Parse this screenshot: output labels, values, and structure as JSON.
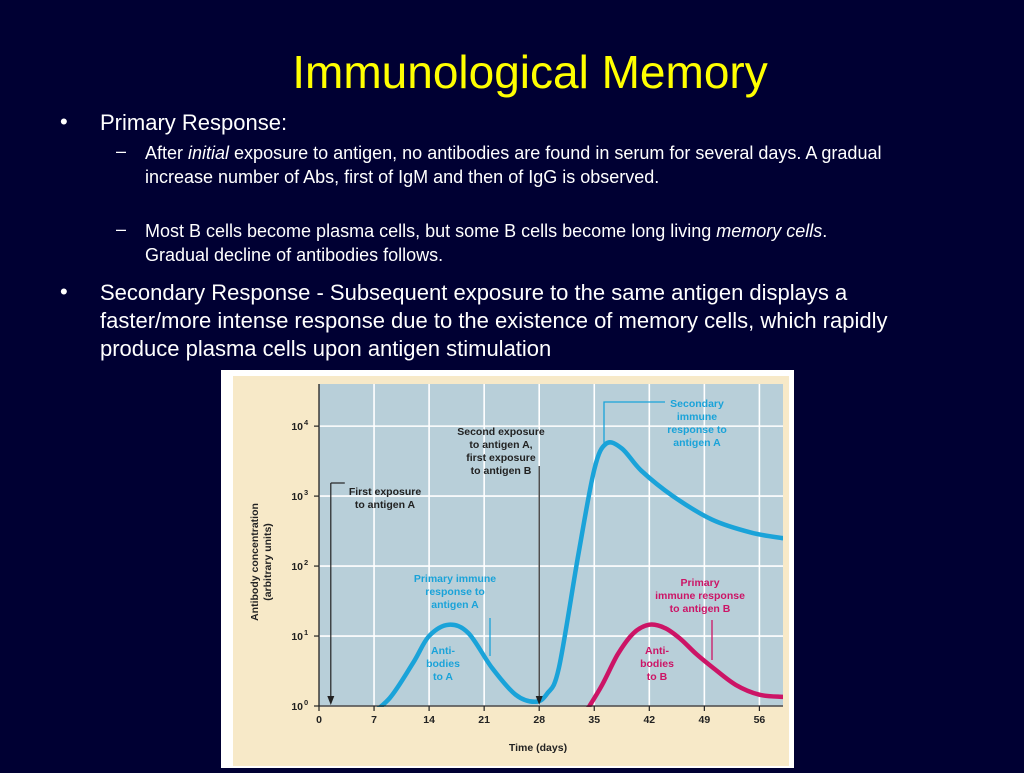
{
  "slide": {
    "title": "Immunological Memory",
    "bullet1": {
      "heading": "Primary Response:"
    },
    "sub1": {
      "pre": "After ",
      "em": "initial",
      "post": " exposure to antigen, no antibodies are found in serum for several days. A gradual increase number of Abs, first of IgM and then of IgG is observed."
    },
    "sub2": {
      "pre": "Most B cells become plasma cells, but some B cells become long living ",
      "em": "memory cells",
      "post": ". Gradual decline of antibodies follows."
    },
    "bullet2": {
      "heading": "Secondary Response - ",
      "text": "Subsequent exposure to the same antigen displays a faster/more intense response due to the existence of memory cells, which rapidly produce plasma cells upon antigen stimulation"
    },
    "marks": {
      "bullet": "•",
      "dash": "–"
    }
  },
  "chart_data": {
    "type": "line",
    "xlabel": "Time (days)",
    "ylabel_lines": [
      "Antibody concentration",
      "(arbitrary units)"
    ],
    "x_ticks": [
      0,
      7,
      14,
      21,
      28,
      35,
      42,
      49,
      56
    ],
    "xlim": [
      0,
      59
    ],
    "y_scale": "log",
    "y_ticks": [
      1,
      10,
      100,
      1000,
      10000
    ],
    "y_tick_labels": [
      {
        "base": "10",
        "exp": "0"
      },
      {
        "base": "10",
        "exp": "1"
      },
      {
        "base": "10",
        "exp": "2"
      },
      {
        "base": "10",
        "exp": "3"
      },
      {
        "base": "10",
        "exp": "4"
      }
    ],
    "ylim": [
      1,
      40000
    ],
    "grid": true,
    "series": [
      {
        "key": "a",
        "color": "#1aa3d9",
        "x": [
          6,
          9,
          12,
          14,
          16.5,
          19,
          22,
          25,
          27.5,
          29,
          30.5,
          33,
          35,
          36.5,
          38.5,
          41,
          45,
          50,
          55,
          59
        ],
        "y": [
          0.68,
          1.3,
          4.2,
          10,
          14.5,
          11,
          3.5,
          1.45,
          1.15,
          1.5,
          3.5,
          150,
          2400,
          5600,
          4800,
          2300,
          1000,
          460,
          300,
          250
        ]
      },
      {
        "key": "b",
        "color": "#cc1466",
        "x": [
          34,
          36,
          38,
          40,
          42,
          44,
          46,
          48,
          50,
          53,
          56,
          59
        ],
        "y": [
          0.85,
          2.0,
          5.5,
          11,
          14.5,
          13,
          9,
          5.5,
          3.6,
          2.0,
          1.45,
          1.35
        ]
      }
    ],
    "exposure_arrows": [
      {
        "x": 1.5,
        "label_lines": [
          "First exposure",
          "to antigen A"
        ]
      },
      {
        "x": 28,
        "label_lines": [
          "Second exposure",
          "to antigen A,",
          "first exposure",
          "to antigen B"
        ]
      }
    ],
    "annotations": {
      "primary_a": [
        "Primary immune",
        "response to",
        "antigen A"
      ],
      "primary_b": [
        "Primary",
        "immune response",
        "to antigen B"
      ],
      "secondary_a": [
        "Secondary",
        "immune",
        "response to",
        "antigen A"
      ],
      "antibodies_a": [
        "Anti-",
        "bodies",
        "to A"
      ],
      "antibodies_b": [
        "Anti-",
        "bodies",
        "to B"
      ]
    },
    "colors": {
      "background": "#b8cfd9",
      "frame": "#f7e9c8",
      "grid": "#ffffff",
      "text": "#222222",
      "series_a": "#1aa3d9",
      "series_b": "#cc1466"
    }
  }
}
